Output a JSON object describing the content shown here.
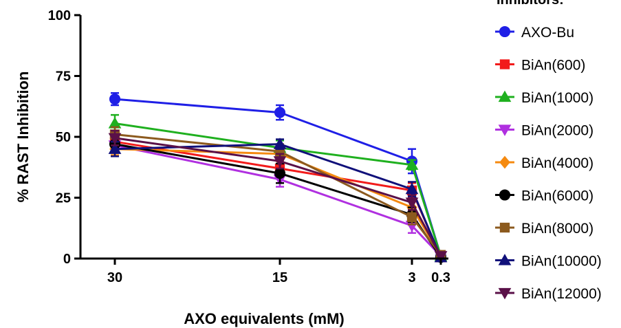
{
  "chart_data": {
    "type": "line",
    "legend_title": "Inhibitors:",
    "legend_position": "right",
    "xlabel": "AXO equivalents (mM)",
    "ylabel": "% RAST Inhibition",
    "categories": [
      "30",
      "15",
      "3",
      "0.3"
    ],
    "ylim": [
      0,
      100
    ],
    "yticks": [
      "0",
      "25",
      "50",
      "75",
      "100"
    ],
    "grid": false,
    "series": [
      {
        "name": "AXO-Bu",
        "color": "#1f1fe6",
        "marker": "circle",
        "values": [
          65.5,
          60,
          40,
          1
        ],
        "errors": [
          2.5,
          3,
          5,
          1
        ]
      },
      {
        "name": "BiAn(600)",
        "color": "#f21b1b",
        "marker": "square",
        "values": [
          48,
          37,
          28,
          0.5
        ],
        "errors": [
          3,
          3,
          3,
          1
        ]
      },
      {
        "name": "BiAn(1000)",
        "color": "#1fb01f",
        "marker": "triangle-up",
        "values": [
          55.5,
          45.5,
          38.5,
          1
        ],
        "errors": [
          3.5,
          3,
          2,
          1
        ]
      },
      {
        "name": "BiAn(2000)",
        "color": "#b030e0",
        "marker": "triangle-down",
        "values": [
          46.5,
          32.5,
          13.5,
          1
        ],
        "errors": [
          3,
          3,
          3,
          1
        ]
      },
      {
        "name": "BiAn(4000)",
        "color": "#f58a10",
        "marker": "diamond",
        "values": [
          45,
          43,
          21,
          1
        ],
        "errors": [
          2.5,
          3,
          3,
          1
        ]
      },
      {
        "name": "BiAn(6000)",
        "color": "#000000",
        "marker": "circle",
        "values": [
          47,
          35,
          18,
          0.5
        ],
        "errors": [
          3,
          4,
          3,
          1
        ]
      },
      {
        "name": "BiAn(8000)",
        "color": "#8c5a1e",
        "marker": "square",
        "values": [
          51,
          44,
          17,
          1.5
        ],
        "errors": [
          3,
          3,
          3,
          1
        ]
      },
      {
        "name": "BiAn(10000)",
        "color": "#10107a",
        "marker": "triangle-up",
        "values": [
          45,
          47,
          28.5,
          0.5
        ],
        "errors": [
          3,
          2,
          3,
          1
        ]
      },
      {
        "name": "BiAn(12000)",
        "color": "#5a1048",
        "marker": "triangle-down",
        "values": [
          49.5,
          40,
          23,
          1
        ],
        "errors": [
          3,
          3,
          3,
          1
        ]
      }
    ]
  }
}
